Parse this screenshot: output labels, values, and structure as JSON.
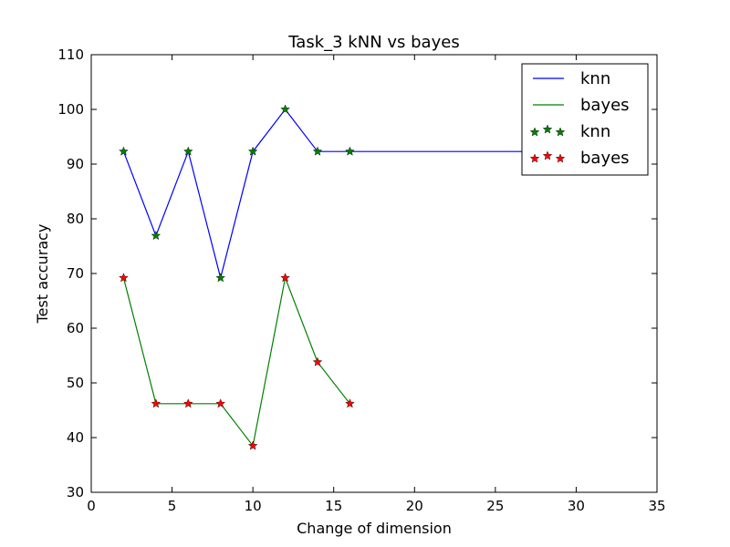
{
  "chart_data": {
    "type": "line",
    "title": "Task_3 kNN vs bayes",
    "xlabel": "Change of dimension",
    "ylabel": "Test accuracy",
    "xlim": [
      0,
      35
    ],
    "ylim": [
      30,
      110
    ],
    "xticks": [
      0,
      5,
      10,
      15,
      20,
      25,
      30,
      35
    ],
    "yticks": [
      30,
      40,
      50,
      60,
      70,
      80,
      90,
      100,
      110
    ],
    "grid": false,
    "legend_position": "top-right",
    "series": [
      {
        "name": "knn",
        "kind": "line",
        "color": "#0000ff",
        "x": [
          2,
          4,
          6,
          8,
          10,
          12,
          14,
          16,
          28
        ],
        "y": [
          92.3,
          76.9,
          92.3,
          69.2,
          92.3,
          100,
          92.3,
          92.3,
          92.3
        ]
      },
      {
        "name": "bayes",
        "kind": "line",
        "color": "#008000",
        "x": [
          2,
          4,
          6,
          8,
          10,
          12,
          14,
          16
        ],
        "y": [
          69.2,
          46.2,
          46.2,
          46.2,
          38.5,
          69.2,
          53.8,
          46.2
        ]
      },
      {
        "name": "knn",
        "kind": "markers",
        "marker": "star",
        "color": "#008000",
        "x": [
          2,
          4,
          6,
          8,
          10,
          12,
          14,
          16
        ],
        "y": [
          92.3,
          76.9,
          92.3,
          69.2,
          92.3,
          100,
          92.3,
          92.3
        ]
      },
      {
        "name": "bayes",
        "kind": "markers",
        "marker": "star",
        "color": "#ff0000",
        "x": [
          2,
          4,
          6,
          8,
          10,
          12,
          14,
          16
        ],
        "y": [
          69.2,
          46.2,
          46.2,
          46.2,
          38.5,
          69.2,
          53.8,
          46.2
        ]
      }
    ]
  }
}
